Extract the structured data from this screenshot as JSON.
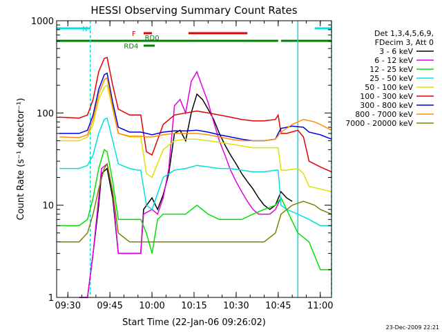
{
  "chart_data": {
    "type": "line",
    "title": "HESSI Observing Summary Count Rates",
    "xlabel": "Start Time (22-Jan-06 09:26:02)",
    "ylabel": "Count Rate (s⁻¹ detector⁻¹)",
    "yscale": "log",
    "ylim": [
      1,
      1000
    ],
    "xlim": [
      "09:26",
      "11:04"
    ],
    "x_ticks": [
      "09:30",
      "09:45",
      "10:00",
      "10:15",
      "10:30",
      "10:45",
      "11:00"
    ],
    "y_ticks": [
      "1",
      "10",
      "100",
      "1000"
    ],
    "grid": false,
    "legend_position": "right",
    "legend_header": [
      "Det 1,3,4,5,6,9,",
      "FDecim 3, Att 0"
    ],
    "timestamp": "23-Dec-2009 22:21",
    "series": [
      {
        "name": "3 - 6 keV",
        "color": "#000000",
        "x": [
          "09:34",
          "09:37",
          "09:39",
          "09:41",
          "09:42",
          "09:44",
          "09:46",
          "09:48",
          "09:50",
          "09:52",
          "09:55",
          "09:56",
          "09:57",
          "10:00",
          "10:02",
          "10:04",
          "10:06",
          "10:08",
          "10:10",
          "10:12",
          "10:14",
          "10:16",
          "10:18",
          "10:20",
          "10:22",
          "10:24",
          "10:26",
          "10:28",
          "10:30",
          "10:32",
          "10:34",
          "10:36",
          "10:38",
          "10:40",
          "10:42",
          "10:44",
          "10:46",
          "10:48",
          "10:50"
        ],
        "y": [
          1,
          1,
          3,
          10,
          22,
          25,
          12,
          3,
          3,
          3,
          3,
          3,
          9,
          12,
          9,
          13,
          22,
          60,
          65,
          50,
          100,
          160,
          140,
          110,
          85,
          60,
          45,
          35,
          28,
          22,
          18,
          15,
          12,
          10,
          9,
          10,
          14,
          12,
          11
        ]
      },
      {
        "name": "6 - 12 keV",
        "color": "#e000e0",
        "x": [
          "09:34",
          "09:37",
          "09:39",
          "09:41",
          "09:42",
          "09:44",
          "09:46",
          "09:48",
          "09:50",
          "09:52",
          "09:55",
          "09:56",
          "09:57",
          "10:00",
          "10:02",
          "10:04",
          "10:06",
          "10:08",
          "10:10",
          "10:12",
          "10:14",
          "10:16",
          "10:18",
          "10:20",
          "10:22",
          "10:24",
          "10:26",
          "10:28",
          "10:30",
          "10:32",
          "10:34",
          "10:36",
          "10:38",
          "10:40",
          "10:42",
          "10:44",
          "10:46"
        ],
        "y": [
          1,
          1,
          3,
          12,
          25,
          28,
          14,
          3,
          3,
          3,
          3,
          3,
          8,
          9,
          8,
          12,
          25,
          120,
          140,
          100,
          220,
          280,
          190,
          130,
          80,
          50,
          35,
          24,
          18,
          14,
          11,
          9,
          8,
          8,
          8,
          9,
          12
        ]
      },
      {
        "name": "12 - 25 keV",
        "color": "#00e000",
        "x": [
          "09:27",
          "09:34",
          "09:37",
          "09:39",
          "09:41",
          "09:43",
          "09:44",
          "09:46",
          "09:48",
          "09:52",
          "09:55",
          "09:56",
          "09:58",
          "10:00",
          "10:02",
          "10:04",
          "10:08",
          "10:12",
          "10:16",
          "10:20",
          "10:24",
          "10:28",
          "10:32",
          "10:36",
          "10:40",
          "10:44",
          "10:46",
          "10:48",
          "10:52",
          "10:56",
          "11:00",
          "11:04"
        ],
        "y": [
          6,
          6,
          7,
          12,
          25,
          40,
          38,
          18,
          7,
          7,
          7,
          7,
          5,
          3,
          7,
          8,
          8,
          8,
          10,
          8,
          7,
          7,
          7,
          8,
          9,
          10,
          12,
          9,
          5,
          4,
          2,
          2
        ]
      },
      {
        "name": "25 - 50 keV",
        "color": "#00e0e0",
        "x": [
          "09:27",
          "09:34",
          "09:37",
          "09:39",
          "09:41",
          "09:43",
          "09:44",
          "09:46",
          "09:48",
          "09:52",
          "09:55",
          "09:56",
          "09:58",
          "10:00",
          "10:04",
          "10:08",
          "10:12",
          "10:16",
          "10:20",
          "10:24",
          "10:28",
          "10:32",
          "10:36",
          "10:40",
          "10:44",
          "10:45",
          "10:46",
          "10:48",
          "10:52",
          "10:56",
          "11:00",
          "11:04"
        ],
        "y": [
          25,
          25,
          27,
          35,
          60,
          85,
          88,
          50,
          28,
          25,
          24,
          24,
          10,
          9,
          20,
          24,
          25,
          27,
          26,
          25,
          25,
          24,
          23,
          23,
          24,
          24,
          10,
          9,
          8,
          7,
          6,
          6
        ]
      },
      {
        "name": "50 - 100 keV",
        "color": "#e0e000",
        "x": [
          "09:27",
          "09:34",
          "09:37",
          "09:39",
          "09:41",
          "09:43",
          "09:44",
          "09:46",
          "09:48",
          "09:52",
          "09:55",
          "09:56",
          "09:58",
          "10:00",
          "10:04",
          "10:08",
          "10:12",
          "10:16",
          "10:20",
          "10:24",
          "10:28",
          "10:32",
          "10:36",
          "10:40",
          "10:44",
          "10:45",
          "10:46",
          "10:48",
          "10:52",
          "10:54",
          "10:56",
          "11:00",
          "11:04"
        ],
        "y": [
          50,
          50,
          55,
          75,
          140,
          190,
          200,
          110,
          60,
          55,
          55,
          55,
          22,
          20,
          40,
          50,
          52,
          52,
          50,
          48,
          46,
          44,
          42,
          42,
          42,
          42,
          24,
          24,
          25,
          22,
          16,
          15,
          14
        ]
      },
      {
        "name": "100 - 300 keV",
        "color": "#e00000",
        "x": [
          "09:27",
          "09:34",
          "09:37",
          "09:39",
          "09:41",
          "09:43",
          "09:44",
          "09:46",
          "09:48",
          "09:52",
          "09:55",
          "09:56",
          "09:58",
          "10:00",
          "10:04",
          "10:08",
          "10:12",
          "10:16",
          "10:20",
          "10:24",
          "10:28",
          "10:32",
          "10:36",
          "10:40",
          "10:44",
          "10:45",
          "10:46",
          "10:48",
          "10:52",
          "10:54",
          "10:56",
          "11:00",
          "11:04"
        ],
        "y": [
          90,
          88,
          95,
          140,
          280,
          390,
          400,
          200,
          110,
          95,
          95,
          95,
          38,
          35,
          75,
          95,
          100,
          105,
          100,
          95,
          90,
          85,
          82,
          82,
          85,
          95,
          60,
          60,
          65,
          55,
          30,
          26,
          23
        ]
      },
      {
        "name": "300 - 800 keV",
        "color": "#0000e0",
        "x": [
          "09:27",
          "09:34",
          "09:37",
          "09:39",
          "09:41",
          "09:43",
          "09:44",
          "09:46",
          "09:48",
          "09:52",
          "09:55",
          "09:56",
          "09:58",
          "10:00",
          "10:04",
          "10:08",
          "10:12",
          "10:16",
          "10:20",
          "10:24",
          "10:28",
          "10:32",
          "10:36",
          "10:40",
          "10:44",
          "10:45",
          "10:46",
          "10:50",
          "10:54",
          "10:56",
          "11:00",
          "11:04"
        ],
        "y": [
          60,
          60,
          65,
          95,
          180,
          260,
          270,
          130,
          70,
          62,
          62,
          62,
          60,
          58,
          62,
          64,
          64,
          65,
          62,
          58,
          55,
          52,
          50,
          50,
          52,
          60,
          68,
          72,
          70,
          62,
          58,
          52
        ]
      },
      {
        "name": "800 - 7000 keV",
        "color": "#ff8c00",
        "x": [
          "09:27",
          "09:34",
          "09:37",
          "09:39",
          "09:41",
          "09:43",
          "09:44",
          "09:46",
          "09:48",
          "09:52",
          "09:55",
          "09:56",
          "09:58",
          "10:00",
          "10:04",
          "10:08",
          "10:12",
          "10:16",
          "10:20",
          "10:24",
          "10:28",
          "10:32",
          "10:36",
          "10:40",
          "10:44",
          "10:46",
          "10:50",
          "10:54",
          "10:58",
          "11:00",
          "11:04"
        ],
        "y": [
          55,
          54,
          58,
          85,
          160,
          230,
          240,
          115,
          60,
          56,
          56,
          56,
          55,
          55,
          58,
          60,
          60,
          60,
          58,
          55,
          52,
          50,
          50,
          50,
          52,
          62,
          75,
          85,
          80,
          75,
          65
        ]
      },
      {
        "name": "7000 - 20000 keV",
        "color": "#808000",
        "x": [
          "09:27",
          "09:34",
          "09:37",
          "09:39",
          "09:41",
          "09:43",
          "09:44",
          "09:46",
          "09:48",
          "09:52",
          "09:55",
          "09:56",
          "09:58",
          "10:00",
          "10:04",
          "10:08",
          "10:12",
          "10:16",
          "10:20",
          "10:24",
          "10:28",
          "10:32",
          "10:36",
          "10:40",
          "10:44",
          "10:46",
          "10:50",
          "10:54",
          "10:58",
          "11:00",
          "11:04"
        ],
        "y": [
          4,
          4,
          5,
          8,
          15,
          25,
          28,
          14,
          5,
          4,
          4,
          4,
          4,
          4,
          4,
          4,
          4,
          4,
          4,
          4,
          4,
          4,
          4,
          4,
          5,
          8,
          10,
          11,
          10,
          9,
          8
        ]
      }
    ],
    "flags": [
      {
        "label": "N",
        "color": "#00e0e0",
        "intervals": [
          [
            "09:26",
            "09:38"
          ],
          [
            "10:58",
            "11:06"
          ]
        ]
      },
      {
        "label": "F",
        "color": "#e00000",
        "intervals": [
          [
            "09:57",
            "10:00"
          ],
          [
            "10:13",
            "10:34"
          ]
        ]
      },
      {
        "label": "RD0",
        "color": "#008000",
        "intervals": [
          [
            "09:26",
            "10:45"
          ],
          [
            "10:46",
            "11:04"
          ]
        ]
      },
      {
        "label": "RD4",
        "color": "#008000",
        "intervals": [
          [
            "09:57",
            "10:01"
          ]
        ]
      }
    ],
    "vlines": [
      {
        "x": "09:38",
        "color": "#00e0e0",
        "style": "dashed"
      },
      {
        "x": "10:52",
        "color": "#00e0e0",
        "style": "solid"
      },
      {
        "x": "11:04",
        "color": "#00e0e0",
        "style": "dashed"
      }
    ]
  }
}
